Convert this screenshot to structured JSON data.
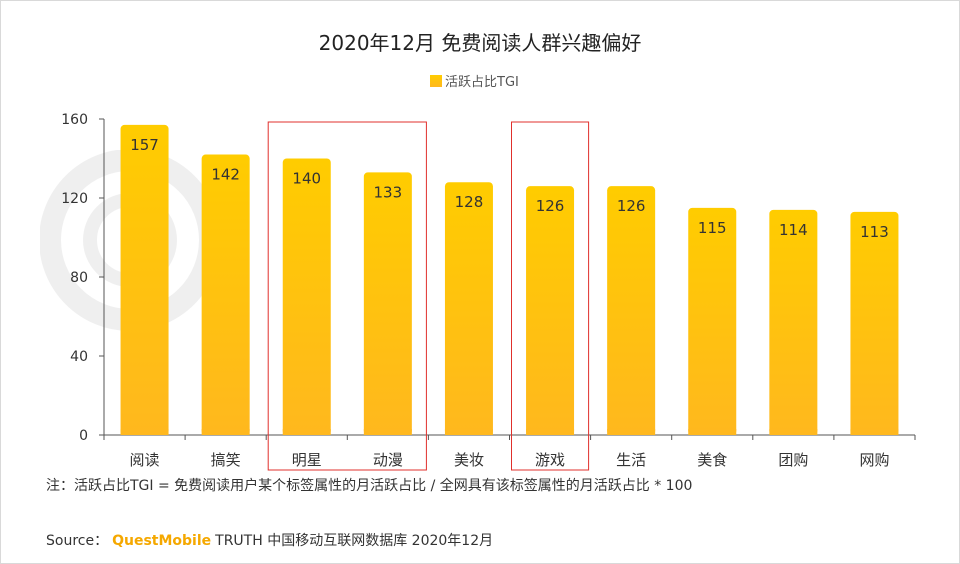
{
  "chart_data": {
    "type": "bar",
    "title": "2020年12月 免费阅读人群兴趣偏好",
    "legend": [
      "活跃占比TGI"
    ],
    "legend_position": "top-center",
    "categories": [
      "阅读",
      "搞笑",
      "明星",
      "动漫",
      "美妆",
      "游戏",
      "生活",
      "美食",
      "团购",
      "网购"
    ],
    "series": [
      {
        "name": "活跃占比TGI",
        "values": [
          157,
          142,
          140,
          133,
          128,
          126,
          126,
          115,
          114,
          113
        ]
      }
    ],
    "ylim": [
      0,
      160
    ],
    "yticks": [
      0,
      40,
      80,
      120,
      160
    ],
    "grid": false,
    "highlighted_groups": [
      [
        "明星",
        "动漫"
      ],
      [
        "游戏"
      ]
    ],
    "colors": {
      "bar_top": "#FFCC00",
      "bar_bottom": "#FFB81E",
      "highlight_box": "#E0302C"
    }
  },
  "note": "注：活跃占比TGI = 免费阅读用户某个标签属性的月活跃占比 / 全网具有该标签属性的月活跃占比 * 100",
  "source": {
    "label": "Source：",
    "brand": "QuestMobile",
    "text": "TRUTH 中国移动互联网数据库 2020年12月"
  }
}
